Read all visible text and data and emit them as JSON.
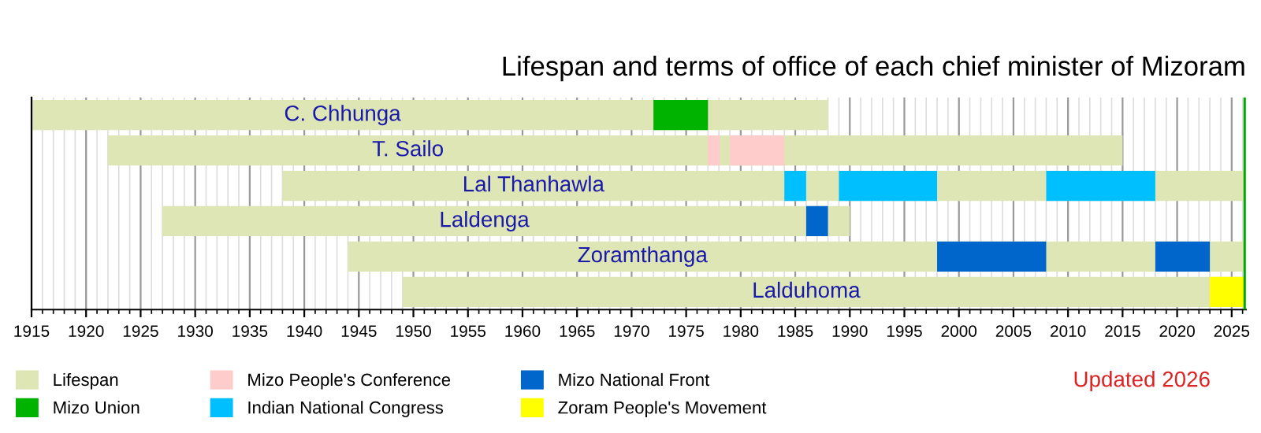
{
  "chart_data": {
    "type": "bar",
    "orientation": "horizontal",
    "title": "Lifespan and terms of office of each chief minister of Mizoram",
    "categories": [
      "C. Chhunga",
      "T. Sailo",
      "Lal Thanhawla",
      "Laldenga",
      "Zoramthanga",
      "Lalduhoma"
    ],
    "series": [
      {
        "name": "Lifespan",
        "color": "#dfe6b6",
        "base": [
          1915,
          1922,
          1938,
          1927,
          1944,
          1949
        ],
        "values": [
          73,
          93,
          88.2,
          63,
          82.2,
          77.2
        ]
      },
      {
        "name": "Mizo Union",
        "color": "#00b300",
        "base": [
          1972,
          null,
          null,
          null,
          null,
          null
        ],
        "values": [
          5,
          null,
          null,
          null,
          null,
          null
        ]
      },
      {
        "name": "Mizo People's Conference",
        "color": "#ffcccc",
        "base": [
          null,
          1977,
          null,
          null,
          null,
          null
        ],
        "values": [
          null,
          1.1,
          null,
          null,
          null,
          null
        ]
      },
      {
        "name": "Indian National Congress",
        "color": "#00bfff",
        "base": [
          null,
          null,
          1984,
          null,
          null,
          null
        ],
        "values": [
          null,
          null,
          2,
          null,
          null,
          null
        ]
      },
      {
        "name": "Mizo National Front",
        "color": "#0066cc",
        "base": [
          null,
          null,
          null,
          1986,
          1998,
          null
        ],
        "values": [
          null,
          null,
          null,
          2,
          10,
          null
        ]
      },
      {
        "name": "Zoram People's Movement",
        "color": "#ffff00",
        "base": [
          null,
          null,
          null,
          null,
          null,
          2023
        ],
        "values": [
          null,
          null,
          null,
          null,
          null,
          3.2
        ]
      },
      {
        "color": "#ffcccc",
        "base": [
          null,
          1979,
          null,
          null,
          null,
          null
        ],
        "values": [
          null,
          5,
          null,
          null,
          null,
          null
        ]
      },
      {
        "color": "#00bfff",
        "base": [
          null,
          null,
          1989,
          null,
          null,
          null
        ],
        "values": [
          null,
          null,
          9,
          null,
          null,
          null
        ]
      },
      {
        "color": "#00bfff",
        "base": [
          null,
          null,
          2008,
          null,
          null,
          null
        ],
        "values": [
          null,
          null,
          10,
          null,
          null,
          null
        ]
      },
      {
        "color": "#0066cc",
        "base": [
          null,
          null,
          null,
          null,
          2018,
          null
        ],
        "values": [
          null,
          null,
          null,
          null,
          5,
          null
        ]
      }
    ],
    "xlim": [
      1915,
      2026.3
    ],
    "xticks": [
      1915,
      1920,
      1925,
      1930,
      1935,
      1940,
      1945,
      1950,
      1955,
      1960,
      1965,
      1970,
      1975,
      1980,
      1985,
      1990,
      1995,
      2000,
      2005,
      2010,
      2015,
      2020,
      2025
    ],
    "ref_lines": [
      {
        "axis": "x",
        "value": 2026.2,
        "color": "#00aa00"
      }
    ],
    "grid": "x",
    "tick_labels": "x",
    "legend": "bottom left",
    "annotations": [
      "Updated 2026"
    ]
  }
}
